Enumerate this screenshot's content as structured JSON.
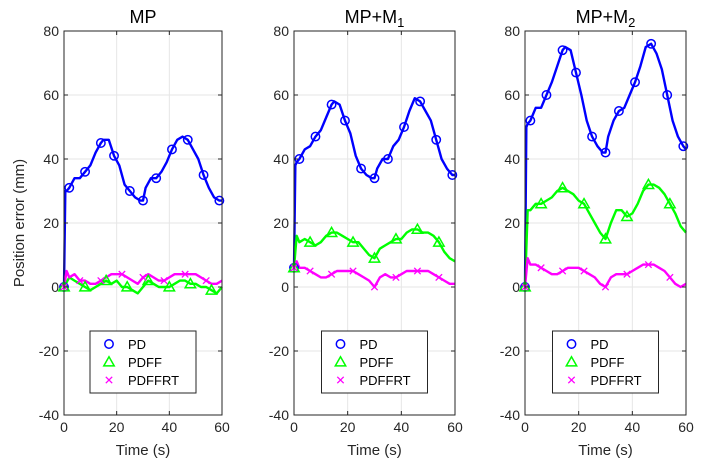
{
  "chart_data": [
    {
      "type": "line",
      "title": "MP",
      "title_sub": "",
      "xlabel": "Time (s)",
      "ylabel": "Position error (mm)",
      "xlim": [
        0,
        60
      ],
      "ylim": [
        -40,
        80
      ],
      "xticks": [
        0,
        20,
        40,
        60
      ],
      "yticks": [
        -40,
        -20,
        0,
        20,
        40,
        60,
        80
      ],
      "grid": true,
      "legend": "bottom-center",
      "series": [
        {
          "name": "PD",
          "color": "#0000ff",
          "marker": "circle",
          "x": [
            0,
            0.5,
            1,
            2,
            4,
            6,
            8,
            10,
            12,
            14,
            15,
            17,
            19,
            21,
            23,
            25,
            27,
            29,
            30,
            31,
            33,
            35,
            37,
            39,
            41,
            43,
            45,
            47,
            49,
            51,
            53,
            55,
            57,
            59,
            60
          ],
          "y": [
            0,
            30,
            30,
            31,
            34,
            34,
            36,
            38,
            42,
            45,
            46,
            46,
            41,
            38,
            32,
            30,
            28,
            27,
            27,
            31,
            34,
            34,
            36,
            39,
            43,
            46,
            47,
            46,
            43,
            40,
            35,
            31,
            28,
            27,
            27
          ]
        },
        {
          "name": "PDFF",
          "color": "#00ff00",
          "marker": "triangle",
          "x": [
            0,
            2,
            4,
            6,
            8,
            10,
            12,
            14,
            16,
            18,
            20,
            22,
            24,
            26,
            28,
            30,
            32,
            34,
            36,
            38,
            40,
            42,
            44,
            46,
            48,
            50,
            52,
            54,
            56,
            58,
            60
          ],
          "y": [
            0,
            3,
            2,
            1,
            0,
            -1,
            0,
            1,
            2,
            1,
            2,
            0,
            0,
            -1,
            -2,
            0,
            2,
            1,
            0,
            0,
            0,
            1,
            2,
            2,
            1,
            1,
            0,
            0,
            -1,
            -2,
            0
          ]
        },
        {
          "name": "PDFFRT",
          "color": "#ff00ff",
          "marker": "x",
          "x": [
            0,
            1,
            2,
            4,
            6,
            8,
            10,
            12,
            14,
            16,
            18,
            20,
            22,
            24,
            26,
            28,
            30,
            32,
            34,
            36,
            38,
            40,
            42,
            44,
            46,
            48,
            50,
            52,
            54,
            56,
            58,
            60
          ],
          "y": [
            0,
            5,
            3,
            4,
            2,
            2,
            1,
            1,
            2,
            3,
            4,
            4,
            4,
            3,
            2,
            1,
            3,
            4,
            3,
            2,
            2,
            3,
            4,
            4,
            4,
            4,
            4,
            3,
            2,
            1,
            1,
            2
          ]
        }
      ]
    },
    {
      "type": "line",
      "title": "MP+M",
      "title_sub": "1",
      "xlabel": "Time (s)",
      "ylabel": "",
      "xlim": [
        0,
        60
      ],
      "ylim": [
        -40,
        80
      ],
      "xticks": [
        0,
        20,
        40,
        60
      ],
      "yticks": [
        -40,
        -20,
        0,
        20,
        40,
        60,
        80
      ],
      "grid": true,
      "legend": "bottom-center",
      "series": [
        {
          "name": "PD",
          "color": "#0000ff",
          "marker": "circle",
          "x": [
            0,
            0.5,
            1,
            2,
            4,
            6,
            8,
            10,
            12,
            14,
            15,
            17,
            19,
            21,
            23,
            25,
            27,
            29,
            30,
            31,
            33,
            35,
            37,
            39,
            41,
            43,
            45,
            47,
            49,
            51,
            53,
            55,
            57,
            59,
            60
          ],
          "y": [
            6,
            38,
            39,
            40,
            43,
            44,
            47,
            49,
            53,
            57,
            58,
            57,
            52,
            48,
            41,
            37,
            35,
            34,
            34,
            37,
            40,
            40,
            44,
            46,
            50,
            55,
            59,
            58,
            55,
            52,
            46,
            40,
            37,
            35,
            35
          ]
        },
        {
          "name": "PDFF",
          "color": "#00ff00",
          "marker": "triangle",
          "x": [
            0,
            1,
            2,
            4,
            6,
            8,
            10,
            12,
            14,
            16,
            18,
            20,
            22,
            24,
            26,
            28,
            30,
            32,
            34,
            36,
            38,
            40,
            42,
            44,
            46,
            48,
            50,
            52,
            54,
            56,
            58,
            60
          ],
          "y": [
            6,
            16,
            14,
            15,
            14,
            13,
            14,
            16,
            17,
            17,
            16,
            15,
            14,
            14,
            12,
            10,
            9,
            12,
            13,
            14,
            15,
            15,
            17,
            18,
            18,
            17,
            17,
            16,
            14,
            11,
            9,
            8
          ]
        },
        {
          "name": "PDFFRT",
          "color": "#ff00ff",
          "marker": "x",
          "x": [
            0,
            1,
            2,
            4,
            6,
            8,
            10,
            12,
            14,
            16,
            18,
            20,
            22,
            24,
            26,
            28,
            30,
            32,
            34,
            36,
            38,
            40,
            42,
            44,
            46,
            48,
            50,
            52,
            54,
            56,
            58,
            60
          ],
          "y": [
            6,
            8,
            6,
            6,
            5,
            4,
            3,
            3,
            4,
            5,
            5,
            5,
            5,
            4,
            3,
            2,
            0,
            3,
            4,
            3,
            3,
            4,
            5,
            5,
            5,
            5,
            5,
            4,
            3,
            2,
            1,
            1
          ]
        }
      ]
    },
    {
      "type": "line",
      "title": "MP+M",
      "title_sub": "2",
      "xlabel": "Time (s)",
      "ylabel": "",
      "xlim": [
        0,
        60
      ],
      "ylim": [
        -40,
        80
      ],
      "xticks": [
        0,
        20,
        40,
        60
      ],
      "yticks": [
        -40,
        -20,
        0,
        20,
        40,
        60,
        80
      ],
      "grid": true,
      "legend": "bottom-center",
      "series": [
        {
          "name": "PD",
          "color": "#0000ff",
          "marker": "circle",
          "x": [
            0,
            0.5,
            1,
            2,
            4,
            6,
            8,
            10,
            12,
            14,
            15,
            17,
            19,
            21,
            23,
            25,
            27,
            29,
            30,
            31,
            33,
            35,
            37,
            39,
            41,
            43,
            45,
            47,
            49,
            51,
            53,
            55,
            57,
            59,
            60
          ],
          "y": [
            0,
            50,
            51,
            52,
            56,
            56,
            60,
            64,
            69,
            74,
            75,
            74,
            67,
            60,
            52,
            47,
            44,
            42,
            42,
            47,
            52,
            55,
            56,
            60,
            64,
            69,
            75,
            76,
            73,
            68,
            60,
            52,
            47,
            44,
            43
          ]
        },
        {
          "name": "PDFF",
          "color": "#00ff00",
          "marker": "triangle",
          "x": [
            0,
            1,
            2,
            4,
            6,
            8,
            10,
            12,
            14,
            16,
            18,
            20,
            22,
            24,
            26,
            28,
            30,
            32,
            34,
            36,
            38,
            40,
            42,
            44,
            46,
            48,
            50,
            52,
            54,
            56,
            58,
            60
          ],
          "y": [
            0,
            24,
            24,
            26,
            26,
            27,
            28,
            30,
            31,
            30,
            29,
            27,
            26,
            23,
            20,
            17,
            15,
            20,
            24,
            24,
            22,
            23,
            26,
            30,
            32,
            32,
            31,
            29,
            26,
            23,
            19,
            17
          ]
        },
        {
          "name": "PDFFRT",
          "color": "#ff00ff",
          "marker": "x",
          "x": [
            0,
            1,
            2,
            4,
            6,
            8,
            10,
            12,
            14,
            16,
            18,
            20,
            22,
            24,
            26,
            28,
            30,
            32,
            34,
            36,
            38,
            40,
            42,
            44,
            46,
            48,
            50,
            52,
            54,
            56,
            58,
            60
          ],
          "y": [
            0,
            9,
            7,
            7,
            6,
            5,
            4,
            4,
            5,
            6,
            6,
            6,
            5,
            4,
            3,
            1,
            0,
            3,
            4,
            4,
            4,
            5,
            6,
            7,
            7,
            7,
            6,
            5,
            3,
            1,
            0,
            1
          ]
        }
      ]
    }
  ]
}
